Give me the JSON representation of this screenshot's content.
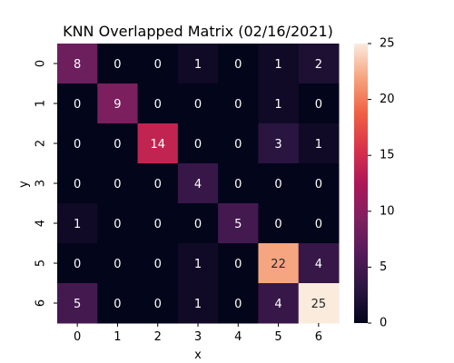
{
  "chart_data": {
    "type": "heatmap",
    "title": "KNN Overlapped Matrix (02/16/2021)",
    "xlabel": "x",
    "ylabel": "y",
    "x_categories": [
      "0",
      "1",
      "2",
      "3",
      "4",
      "5",
      "6"
    ],
    "y_categories": [
      "0",
      "1",
      "2",
      "3",
      "4",
      "5",
      "6"
    ],
    "values": [
      [
        8,
        0,
        0,
        1,
        0,
        1,
        2
      ],
      [
        0,
        9,
        0,
        0,
        0,
        1,
        0
      ],
      [
        0,
        0,
        14,
        0,
        0,
        3,
        1
      ],
      [
        0,
        0,
        0,
        4,
        0,
        0,
        0
      ],
      [
        1,
        0,
        0,
        0,
        5,
        0,
        0
      ],
      [
        0,
        0,
        0,
        1,
        0,
        22,
        4
      ],
      [
        5,
        0,
        0,
        1,
        0,
        4,
        25
      ]
    ],
    "colorbar": {
      "min": 0,
      "max": 25,
      "ticks": [
        0,
        5,
        10,
        15,
        20,
        25
      ]
    },
    "colormap": "rocket",
    "grid": false
  }
}
